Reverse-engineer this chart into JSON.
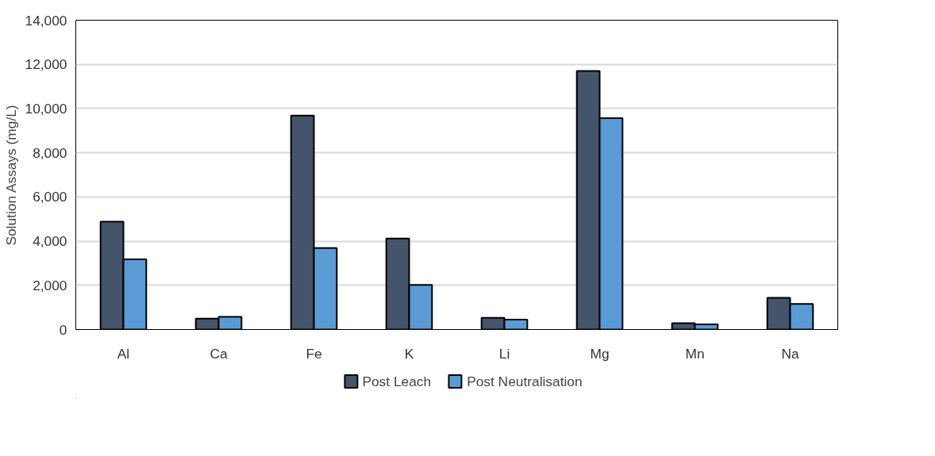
{
  "chart_data": {
    "type": "bar",
    "ylabel": "Solution Assays (mg/L)",
    "categories": [
      "Al",
      "Ca",
      "Fe",
      "K",
      "Li",
      "Mg",
      "Mn",
      "Na"
    ],
    "series": [
      {
        "name": "Post Leach",
        "color": "#44546a",
        "values": [
          4880,
          490,
          9680,
          4120,
          530,
          11700,
          290,
          1440
        ]
      },
      {
        "name": "Post Neutralisation",
        "color": "#5b9bd5",
        "values": [
          3180,
          570,
          3690,
          2020,
          450,
          9570,
          230,
          1160
        ]
      }
    ],
    "ylim": [
      0,
      14000
    ],
    "yticks": [
      {
        "value": 0,
        "label": "0"
      },
      {
        "value": 2000,
        "label": "2,000"
      },
      {
        "value": 4000,
        "label": "4,000"
      },
      {
        "value": 6000,
        "label": "6,000"
      },
      {
        "value": 8000,
        "label": "8,000"
      },
      {
        "value": 10000,
        "label": "10,000"
      },
      {
        "value": 12000,
        "label": "12,000"
      },
      {
        "value": 14000,
        "label": "14,000"
      }
    ],
    "grid": "y",
    "legend": "bottom"
  }
}
